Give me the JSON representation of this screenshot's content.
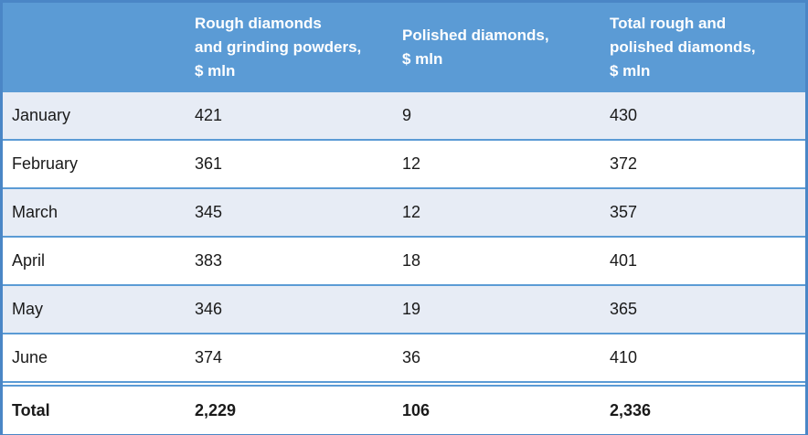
{
  "chart_data": {
    "type": "table",
    "columns": [
      "",
      "Rough diamonds and grinding powders, $ mln",
      "Polished diamonds, $ mln",
      "Total rough and polished diamonds, $ mln"
    ],
    "header_lines": [
      [
        ""
      ],
      [
        "Rough diamonds",
        "and grinding powders,",
        "$ mln"
      ],
      [
        "Polished diamonds,",
        "$ mln"
      ],
      [
        "Total rough and",
        "polished diamonds,",
        "$ mln"
      ]
    ],
    "rows": [
      [
        "January",
        "421",
        "9",
        "430"
      ],
      [
        "February",
        "361",
        "12",
        "372"
      ],
      [
        "March",
        "345",
        "12",
        "357"
      ],
      [
        "April",
        "383",
        "18",
        "401"
      ],
      [
        "May",
        "346",
        "19",
        "365"
      ],
      [
        "June",
        "374",
        "36",
        "410"
      ]
    ],
    "total": [
      "Total",
      "2,229",
      "106",
      "2,336"
    ]
  },
  "colors": {
    "header_bg": "#5b9bd5",
    "header_text": "#ffffff",
    "band": "#e7ecf5",
    "rule": "#5b9bd5"
  }
}
